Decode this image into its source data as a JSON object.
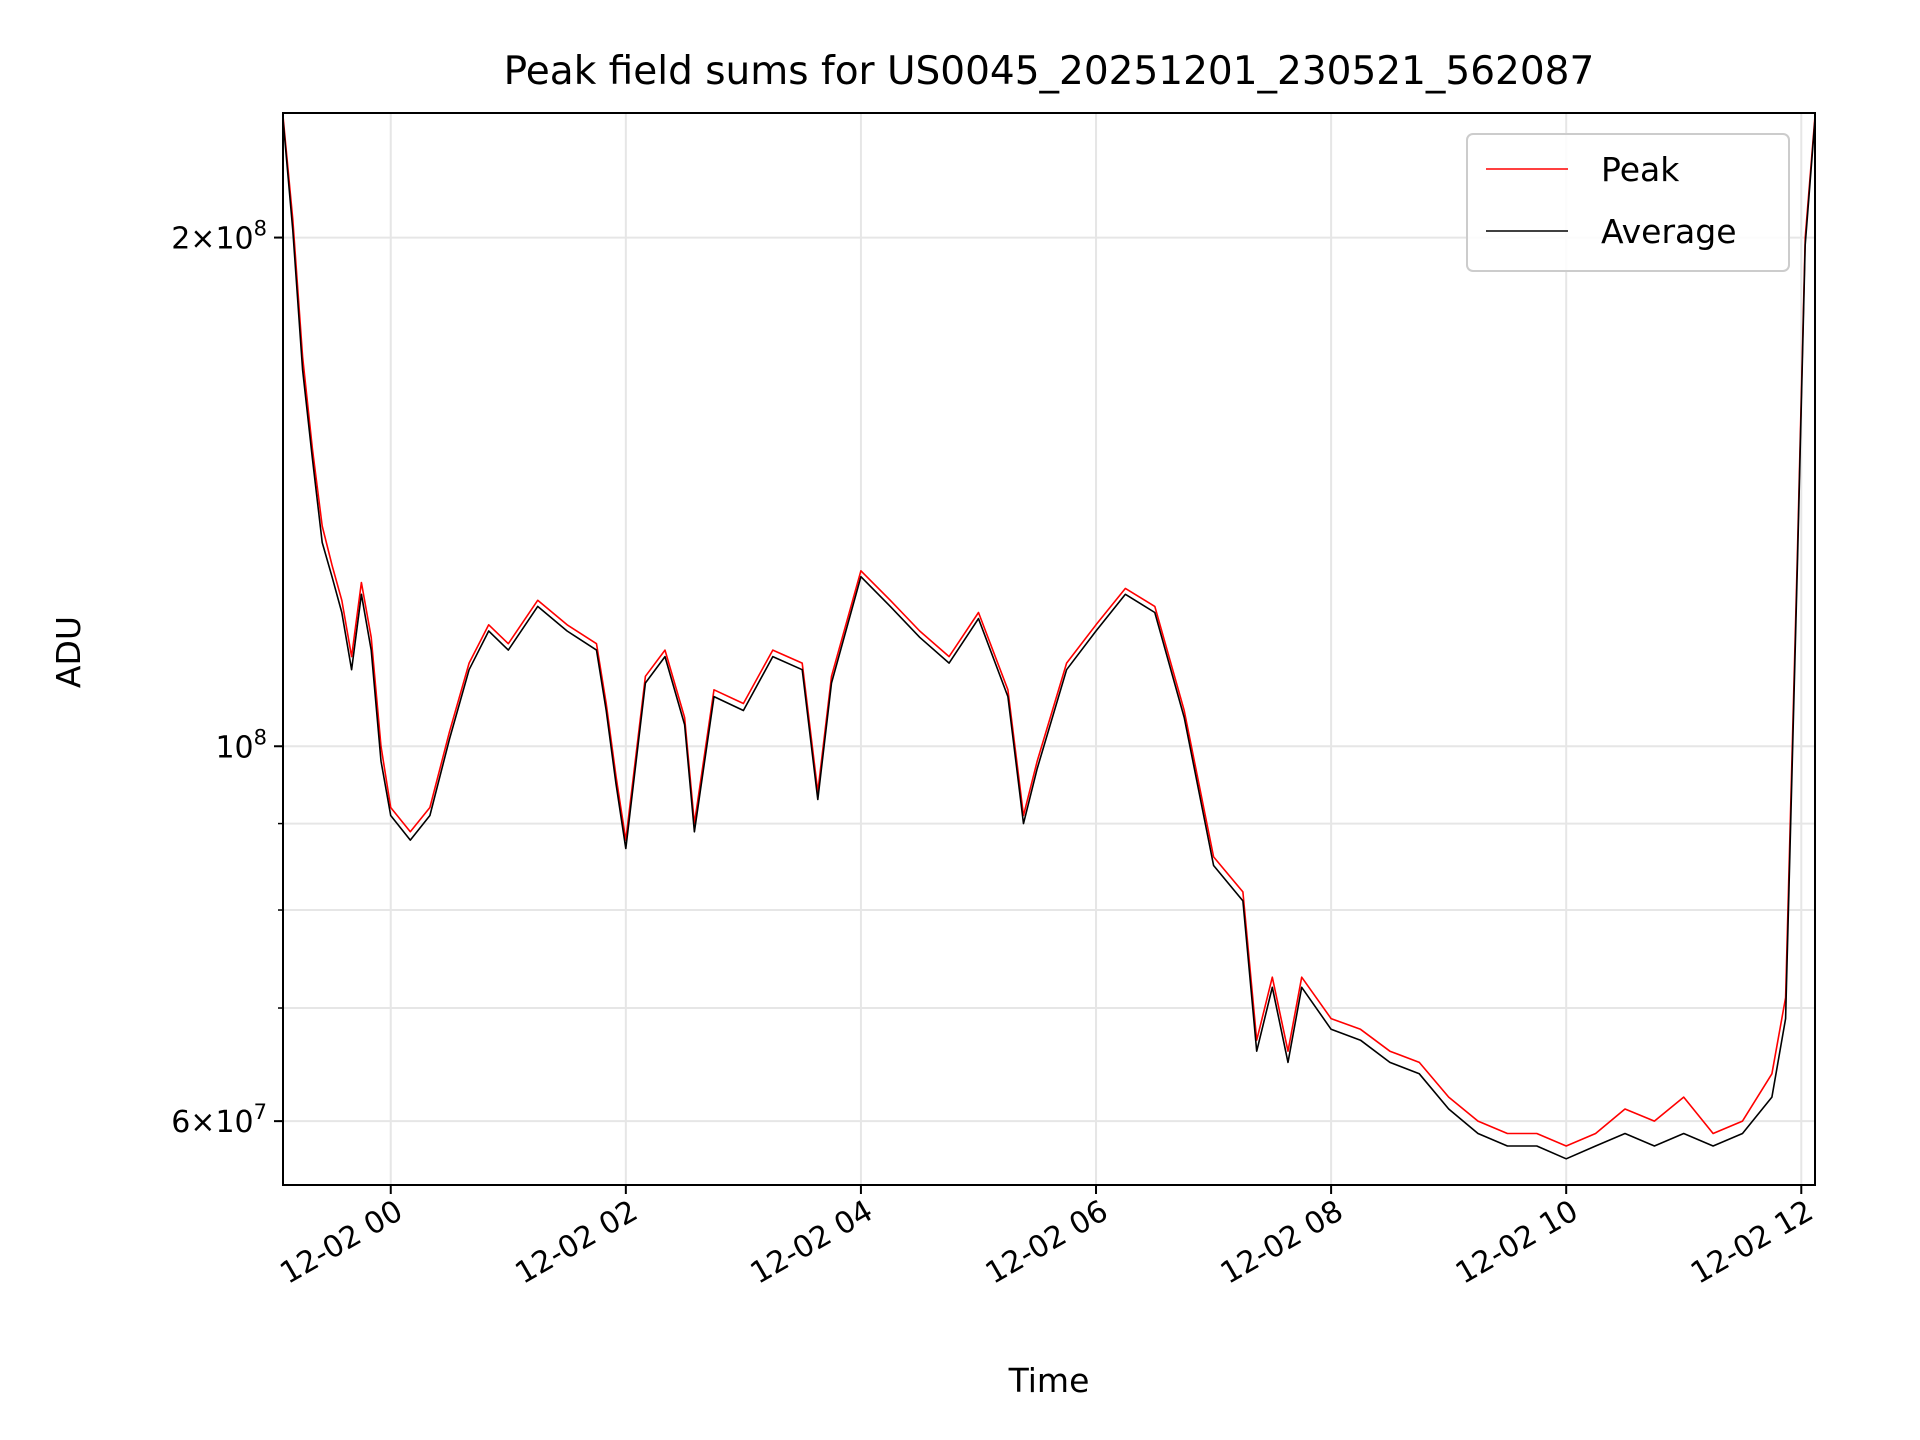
{
  "chart_data": {
    "type": "line",
    "title": "Peak field sums for US0045_20251201_230521_562087",
    "xlabel": "Time",
    "ylabel": "ADU",
    "yscale": "log",
    "ylim": [
      55000000,
      237000000
    ],
    "xlim": [
      "2025-12-01 23:05",
      "2025-12-02 12:07"
    ],
    "grid": true,
    "legend_position": "top-right",
    "x_ticks": [
      "12-02 00",
      "12-02 02",
      "12-02 04",
      "12-02 06",
      "12-02 08",
      "12-02 10",
      "12-02 12"
    ],
    "y_ticks": [
      {
        "value": 60000000,
        "base": "6",
        "exp": "7"
      },
      {
        "value": 100000000,
        "base": "10",
        "exp": "8"
      },
      {
        "value": 200000000,
        "base": "2",
        "exp": "8"
      }
    ],
    "series": [
      {
        "name": "Peak",
        "color": "#ff0000",
        "x": [
          "2025-12-01 23:05",
          "2025-12-01 23:10",
          "2025-12-01 23:15",
          "2025-12-01 23:20",
          "2025-12-01 23:25",
          "2025-12-01 23:30",
          "2025-12-01 23:35",
          "2025-12-01 23:40",
          "2025-12-01 23:45",
          "2025-12-01 23:50",
          "2025-12-01 23:55",
          "2025-12-02 00:00",
          "2025-12-02 00:10",
          "2025-12-02 00:20",
          "2025-12-02 00:30",
          "2025-12-02 00:40",
          "2025-12-02 00:50",
          "2025-12-02 01:00",
          "2025-12-02 01:15",
          "2025-12-02 01:30",
          "2025-12-02 01:45",
          "2025-12-02 01:50",
          "2025-12-02 01:55",
          "2025-12-02 02:00",
          "2025-12-02 02:10",
          "2025-12-02 02:20",
          "2025-12-02 02:30",
          "2025-12-02 02:35",
          "2025-12-02 02:45",
          "2025-12-02 03:00",
          "2025-12-02 03:15",
          "2025-12-02 03:30",
          "2025-12-02 03:38",
          "2025-12-02 03:45",
          "2025-12-02 04:00",
          "2025-12-02 04:15",
          "2025-12-02 04:30",
          "2025-12-02 04:45",
          "2025-12-02 05:00",
          "2025-12-02 05:15",
          "2025-12-02 05:23",
          "2025-12-02 05:30",
          "2025-12-02 05:45",
          "2025-12-02 06:00",
          "2025-12-02 06:15",
          "2025-12-02 06:30",
          "2025-12-02 06:45",
          "2025-12-02 07:00",
          "2025-12-02 07:15",
          "2025-12-02 07:22",
          "2025-12-02 07:30",
          "2025-12-02 07:38",
          "2025-12-02 07:45",
          "2025-12-02 08:00",
          "2025-12-02 08:15",
          "2025-12-02 08:30",
          "2025-12-02 08:45",
          "2025-12-02 09:00",
          "2025-12-02 09:15",
          "2025-12-02 09:30",
          "2025-12-02 09:45",
          "2025-12-02 10:00",
          "2025-12-02 10:15",
          "2025-12-02 10:30",
          "2025-12-02 10:45",
          "2025-12-02 11:00",
          "2025-12-02 11:15",
          "2025-12-02 11:30",
          "2025-12-02 11:45",
          "2025-12-02 11:52",
          "2025-12-02 11:58",
          "2025-12-02 12:02",
          "2025-12-02 12:07"
        ],
        "values": [
          236000000,
          205000000,
          170000000,
          150000000,
          135000000,
          128000000,
          122000000,
          113000000,
          125000000,
          116000000,
          100000000,
          92000000,
          89000000,
          92000000,
          102000000,
          112000000,
          118000000,
          115000000,
          122000000,
          118000000,
          115000000,
          106000000,
          96000000,
          88000000,
          110000000,
          114000000,
          104000000,
          90000000,
          108000000,
          106000000,
          114000000,
          112000000,
          94000000,
          110000000,
          127000000,
          122000000,
          117000000,
          113000000,
          120000000,
          108000000,
          91000000,
          98000000,
          112000000,
          118000000,
          124000000,
          121000000,
          105000000,
          86000000,
          82000000,
          67000000,
          73000000,
          66000000,
          73000000,
          69000000,
          68000000,
          66000000,
          65000000,
          62000000,
          60000000,
          59000000,
          59000000,
          58000000,
          59000000,
          61000000,
          60000000,
          62000000,
          59000000,
          60000000,
          64000000,
          71000000,
          130000000,
          200000000,
          236000000
        ]
      },
      {
        "name": "Average",
        "color": "#000000",
        "x": [
          "2025-12-01 23:05",
          "2025-12-01 23:10",
          "2025-12-01 23:15",
          "2025-12-01 23:20",
          "2025-12-01 23:25",
          "2025-12-01 23:30",
          "2025-12-01 23:35",
          "2025-12-01 23:40",
          "2025-12-01 23:45",
          "2025-12-01 23:50",
          "2025-12-01 23:55",
          "2025-12-02 00:00",
          "2025-12-02 00:10",
          "2025-12-02 00:20",
          "2025-12-02 00:30",
          "2025-12-02 00:40",
          "2025-12-02 00:50",
          "2025-12-02 01:00",
          "2025-12-02 01:15",
          "2025-12-02 01:30",
          "2025-12-02 01:45",
          "2025-12-02 01:50",
          "2025-12-02 01:55",
          "2025-12-02 02:00",
          "2025-12-02 02:10",
          "2025-12-02 02:20",
          "2025-12-02 02:30",
          "2025-12-02 02:35",
          "2025-12-02 02:45",
          "2025-12-02 03:00",
          "2025-12-02 03:15",
          "2025-12-02 03:30",
          "2025-12-02 03:38",
          "2025-12-02 03:45",
          "2025-12-02 04:00",
          "2025-12-02 04:15",
          "2025-12-02 04:30",
          "2025-12-02 04:45",
          "2025-12-02 05:00",
          "2025-12-02 05:15",
          "2025-12-02 05:23",
          "2025-12-02 05:30",
          "2025-12-02 05:45",
          "2025-12-02 06:00",
          "2025-12-02 06:15",
          "2025-12-02 06:30",
          "2025-12-02 06:45",
          "2025-12-02 07:00",
          "2025-12-02 07:15",
          "2025-12-02 07:22",
          "2025-12-02 07:30",
          "2025-12-02 07:38",
          "2025-12-02 07:45",
          "2025-12-02 08:00",
          "2025-12-02 08:15",
          "2025-12-02 08:30",
          "2025-12-02 08:45",
          "2025-12-02 09:00",
          "2025-12-02 09:15",
          "2025-12-02 09:30",
          "2025-12-02 09:45",
          "2025-12-02 10:00",
          "2025-12-02 10:15",
          "2025-12-02 10:30",
          "2025-12-02 10:45",
          "2025-12-02 11:00",
          "2025-12-02 11:15",
          "2025-12-02 11:30",
          "2025-12-02 11:45",
          "2025-12-02 11:52",
          "2025-12-02 11:58",
          "2025-12-02 12:02",
          "2025-12-02 12:07"
        ],
        "values": [
          235000000,
          202000000,
          167000000,
          148000000,
          132000000,
          126000000,
          120000000,
          111000000,
          123000000,
          114000000,
          98000000,
          91000000,
          88000000,
          91000000,
          101000000,
          111000000,
          117000000,
          114000000,
          121000000,
          117000000,
          114000000,
          105000000,
          95000000,
          87000000,
          109000000,
          113000000,
          103000000,
          89000000,
          107000000,
          105000000,
          113000000,
          111000000,
          93000000,
          109000000,
          126000000,
          121000000,
          116000000,
          112000000,
          119000000,
          107000000,
          90000000,
          97000000,
          111000000,
          117000000,
          123000000,
          120000000,
          104000000,
          85000000,
          81000000,
          66000000,
          72000000,
          65000000,
          72000000,
          68000000,
          67000000,
          65000000,
          64000000,
          61000000,
          59000000,
          58000000,
          58000000,
          57000000,
          58000000,
          59000000,
          58000000,
          59000000,
          58000000,
          59000000,
          62000000,
          69000000,
          128000000,
          198000000,
          235000000
        ]
      }
    ]
  }
}
